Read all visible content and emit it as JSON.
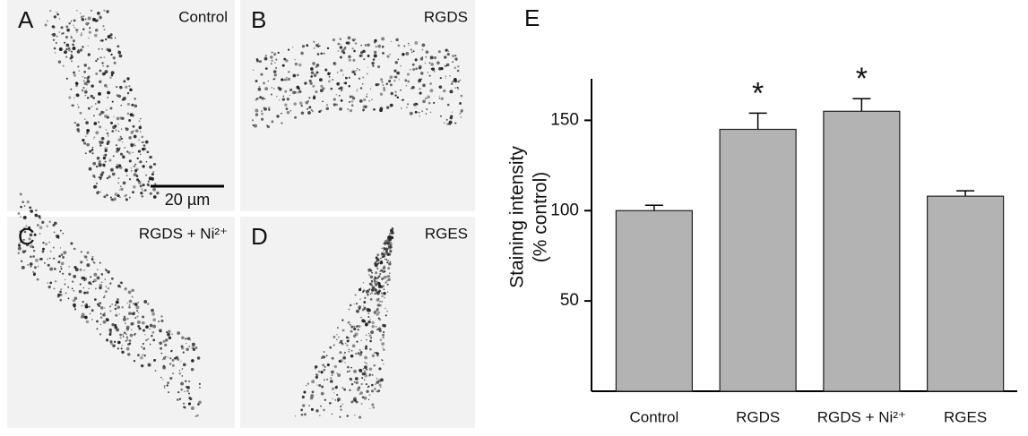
{
  "panels": [
    {
      "letter": "A",
      "label": "Control"
    },
    {
      "letter": "B",
      "label": "RGDS"
    },
    {
      "letter": "C",
      "label": "RGDS + Ni²⁺"
    },
    {
      "letter": "D",
      "label": "RGES"
    }
  ],
  "scale_bar": "20 µm",
  "chart_data": {
    "type": "bar",
    "title": "E",
    "y_label": [
      "Staining intensity",
      "(% control)"
    ],
    "categories": [
      "Control",
      "RGDS",
      "RGDS + Ni²⁺",
      "RGES"
    ],
    "values": [
      100,
      145,
      155,
      108
    ],
    "errors": [
      3,
      9,
      7,
      3
    ],
    "annotations": [
      null,
      "*",
      "*",
      null
    ],
    "color": "#b3b3b3",
    "ylim": [
      0,
      173
    ],
    "yticks": [
      50,
      100,
      150
    ],
    "grid": false
  }
}
